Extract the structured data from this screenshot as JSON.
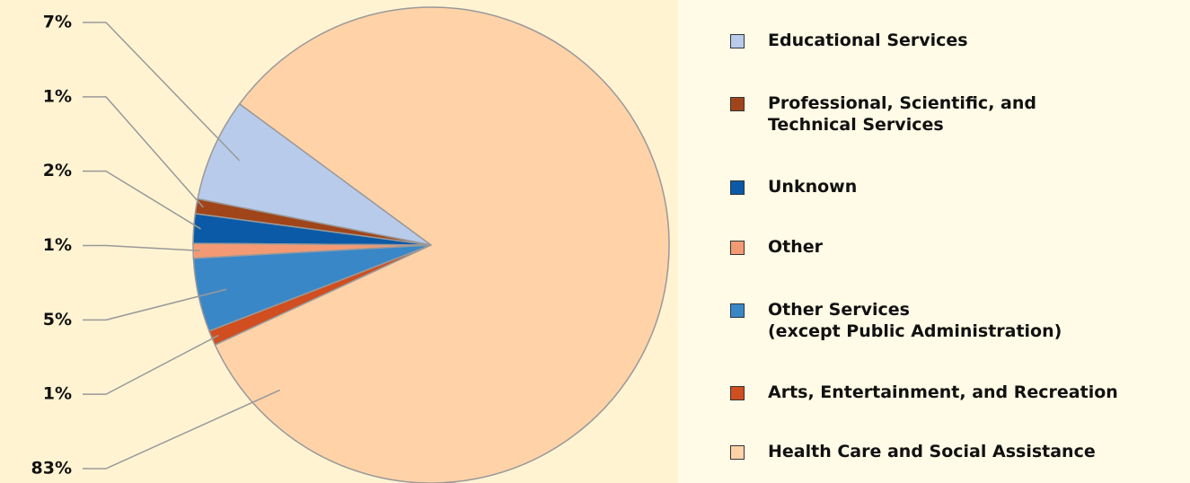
{
  "chart_data": {
    "type": "pie",
    "categories": [
      "Educational Services",
      "Professional, Scientific, and\nTechnical Services",
      "Unknown",
      "Other",
      "Other Services\n(except Public Administration)",
      "Arts, Entertainment, and Recreation",
      "Health Care and Social Assistance"
    ],
    "values": [
      7,
      1,
      2,
      1,
      5,
      1,
      83
    ],
    "value_labels": [
      "7%",
      "1%",
      "2%",
      "1%",
      "5%",
      "1%",
      "83%"
    ],
    "colors": [
      "#b9cbea",
      "#a0451a",
      "#0b5aa7",
      "#f39a74",
      "#3a87c8",
      "#d04e20",
      "#ffd2a8"
    ],
    "legend": "right"
  }
}
